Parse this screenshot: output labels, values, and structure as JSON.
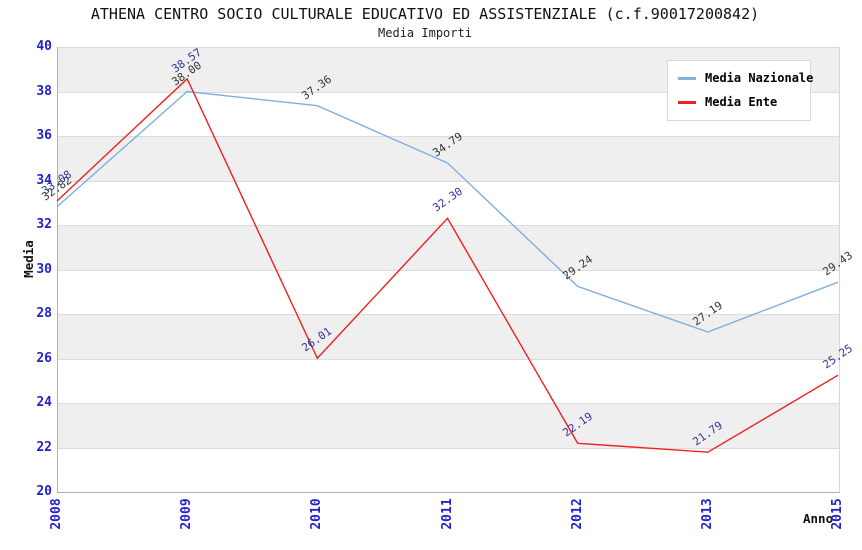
{
  "header": {
    "title": "ATHENA CENTRO SOCIO CULTURALE EDUCATIVO ED ASSISTENZIALE (c.f.90017200842)",
    "subtitle": "Media Importi"
  },
  "chart_data": {
    "type": "line",
    "categories": [
      "2008",
      "2009",
      "2010",
      "2011",
      "2012",
      "2013",
      "2015"
    ],
    "series": [
      {
        "name": "Media Nazionale",
        "color": "#7eb0e0",
        "label_color": "#333333",
        "values": [
          32.82,
          38.0,
          37.36,
          34.79,
          29.24,
          27.19,
          29.43
        ]
      },
      {
        "name": "Media Ente",
        "color": "#f02020",
        "label_color": "#333399",
        "values": [
          33.08,
          38.57,
          26.01,
          32.3,
          22.19,
          21.79,
          25.25
        ]
      }
    ],
    "xlabel": "Anno",
    "ylabel": "Media",
    "ylim": [
      20,
      40
    ],
    "ytick_step": 2,
    "yticks": [
      40,
      38,
      36,
      34,
      32,
      30,
      28,
      26,
      24,
      22,
      20
    ],
    "axis_tick_color": "#2222cc",
    "band_colors": [
      "#efefef",
      "#ffffff"
    ],
    "grid": "horizontal-bands",
    "legend_position": "top-right",
    "point_label_decimals": 2
  }
}
